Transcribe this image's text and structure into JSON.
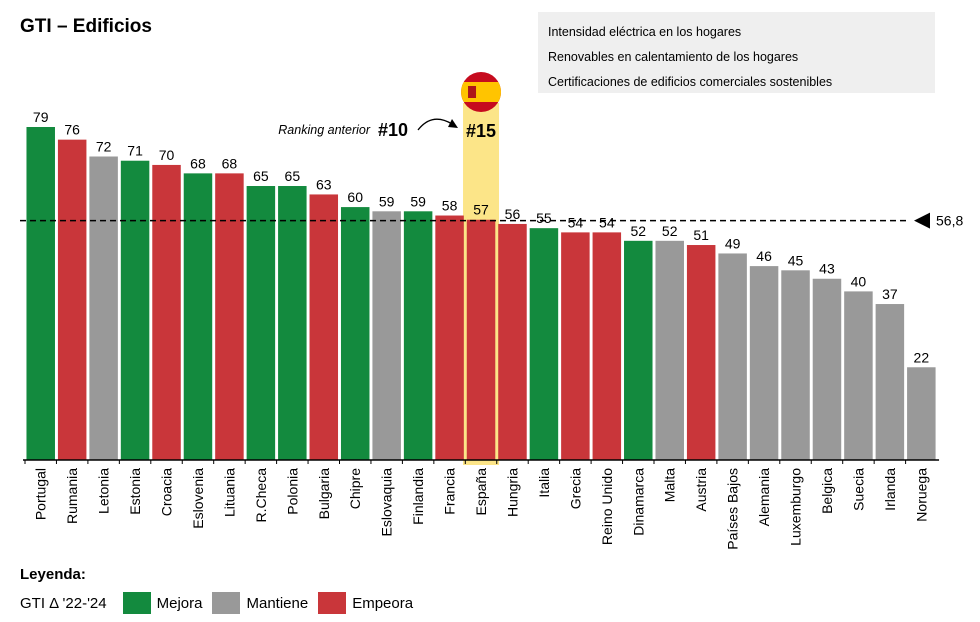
{
  "header": {
    "title": "GTI – Edificios",
    "indicators": [
      "Intensidad eléctrica en los hogares",
      "Renovables en calentamiento de los hogares",
      "Certificaciones de edificios comerciales sostenibles"
    ]
  },
  "colors": {
    "mejora": "#138a3e",
    "mantiene": "#999999",
    "empeora": "#c9363a",
    "highlight": "#fce588"
  },
  "chart_data": {
    "type": "bar",
    "categories": [
      "Portugal",
      "Rumania",
      "Letonia",
      "Estonia",
      "Croacia",
      "Eslovenia",
      "Lituania",
      "R.Checa",
      "Polonia",
      "Bulgaria",
      "Chipre",
      "Eslovaquia",
      "Finlandia",
      "Francia",
      "España",
      "Hungria",
      "Italia",
      "Grecia",
      "Reino Unido",
      "Dinamarca",
      "Malta",
      "Austria",
      "Países Bajos",
      "Alemania",
      "Luxemburgo",
      "Belgica",
      "Suecia",
      "Irlanda",
      "Noruega"
    ],
    "values": [
      79,
      76,
      72,
      71,
      70,
      68,
      68,
      65,
      65,
      63,
      60,
      59,
      59,
      58,
      57,
      56,
      55,
      54,
      54,
      52,
      52,
      51,
      49,
      46,
      45,
      43,
      40,
      37,
      22
    ],
    "value_labels": [
      "79",
      "76",
      "72",
      "71",
      "70",
      "68",
      "68",
      "65",
      "65",
      "63",
      "60",
      "59",
      "59",
      "58",
      "57",
      "56",
      "55",
      "54",
      "54",
      "52",
      "52",
      "51",
      "49",
      "46",
      "45",
      "43",
      "40",
      "37",
      "22"
    ],
    "status": [
      "mejora",
      "empeora",
      "mantiene",
      "mejora",
      "empeora",
      "mejora",
      "empeora",
      "mejora",
      "mejora",
      "empeora",
      "mejora",
      "mantiene",
      "mejora",
      "empeora",
      "empeora",
      "empeora",
      "mejora",
      "empeora",
      "empeora",
      "mejora",
      "mantiene",
      "empeora",
      "mantiene",
      "mantiene",
      "mantiene",
      "mantiene",
      "mantiene",
      "mantiene",
      "mantiene"
    ],
    "ylim": [
      0,
      80
    ],
    "average": {
      "value": 56.8,
      "label": "56,8"
    },
    "highlight": {
      "category": "España",
      "rank_label": "#15",
      "previous_rank_caption": "Ranking anterior",
      "previous_rank_label": "#10"
    }
  },
  "legend": {
    "title": "Leyenda:",
    "caption": "GTI Δ '22-'24",
    "items": [
      {
        "key": "mejora",
        "label": "Mejora"
      },
      {
        "key": "mantiene",
        "label": "Mantiene"
      },
      {
        "key": "empeora",
        "label": "Empeora"
      }
    ]
  }
}
